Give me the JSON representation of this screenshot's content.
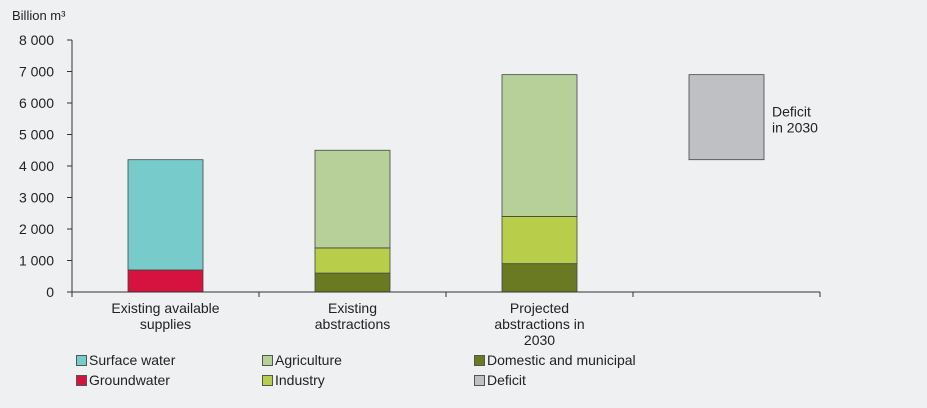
{
  "chart_data": {
    "type": "bar",
    "stacked": true,
    "ylabel": "Billion m³",
    "ylim": [
      0,
      8000
    ],
    "yticks": [
      0,
      1000,
      2000,
      3000,
      4000,
      5000,
      6000,
      7000,
      8000
    ],
    "ytick_labels": [
      "0",
      "1 000",
      "2 000",
      "3 000",
      "4 000",
      "5 000",
      "6 000",
      "7 000",
      "8 000"
    ],
    "categories": [
      [
        "Existing available",
        "supplies"
      ],
      [
        "Existing",
        "abstractions"
      ],
      [
        "Projected",
        "abstractions in",
        "2030"
      ],
      [
        ""
      ]
    ],
    "series": [
      {
        "name": "Groundwater",
        "color": "#d6133e",
        "values": [
          700,
          0,
          0,
          0
        ]
      },
      {
        "name": "Surface water",
        "color": "#77cccb",
        "values": [
          3500,
          0,
          0,
          0
        ]
      },
      {
        "name": "Domestic and municipal",
        "color": "#6a7a22",
        "values": [
          0,
          600,
          900,
          0
        ]
      },
      {
        "name": "Industry",
        "color": "#b8cd4a",
        "values": [
          0,
          800,
          1500,
          0
        ]
      },
      {
        "name": "Agriculture",
        "color": "#b7d09a",
        "values": [
          0,
          3100,
          4500,
          0
        ]
      }
    ],
    "deficit": {
      "name": "Deficit",
      "color": "#bfc0c4",
      "category_index": 3,
      "from": 4200,
      "to": 6900,
      "label": [
        "Deficit",
        "in 2030"
      ]
    },
    "legend": [
      {
        "name": "Surface water",
        "color": "#77cccb"
      },
      {
        "name": "Agriculture",
        "color": "#b7d09a"
      },
      {
        "name": "Domestic and municipal",
        "color": "#6a7a22"
      },
      {
        "name": "Groundwater",
        "color": "#d6133e"
      },
      {
        "name": "Industry",
        "color": "#b8cd4a"
      },
      {
        "name": "Deficit",
        "color": "#bfc0c4"
      }
    ],
    "legend_placement": "bottom",
    "grid": false
  }
}
